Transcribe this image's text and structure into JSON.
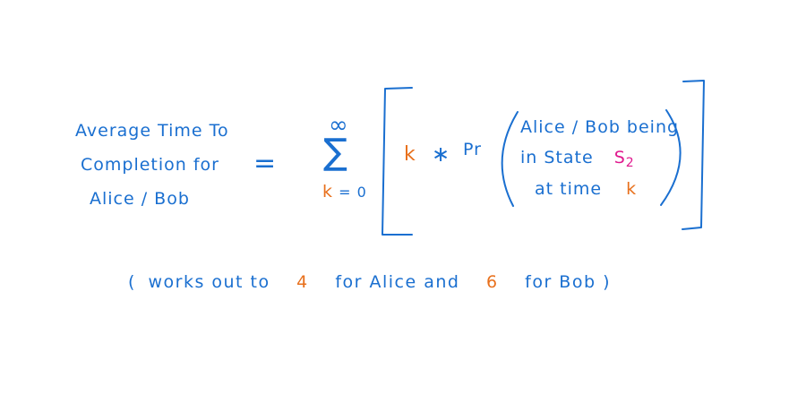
{
  "colors": {
    "ink": "#1a6fd0",
    "highlight": "#e8701c",
    "state": "#e0198e"
  },
  "lhs": [
    "Average Time To",
    "Completion for",
    "Alice / Bob"
  ],
  "equals": "=",
  "sum": {
    "upper": "∞",
    "symbol": "∑",
    "index_var": "k",
    "index_rest": "= 0"
  },
  "term": {
    "k": "k",
    "times": "∗",
    "pr": "Pr",
    "prob_line1": "Alice / Bob being",
    "prob_line2_prefix": "in  State",
    "state_name": "S",
    "state_sub": "2",
    "prob_line3_prefix": "at  time",
    "prob_line3_k": "k"
  },
  "footnote": {
    "open": "(",
    "p1": "works  out  to",
    "alice_value": "4",
    "p2": "for  Alice  and",
    "bob_value": "6",
    "p3": "for  Bob",
    "close": ")"
  }
}
